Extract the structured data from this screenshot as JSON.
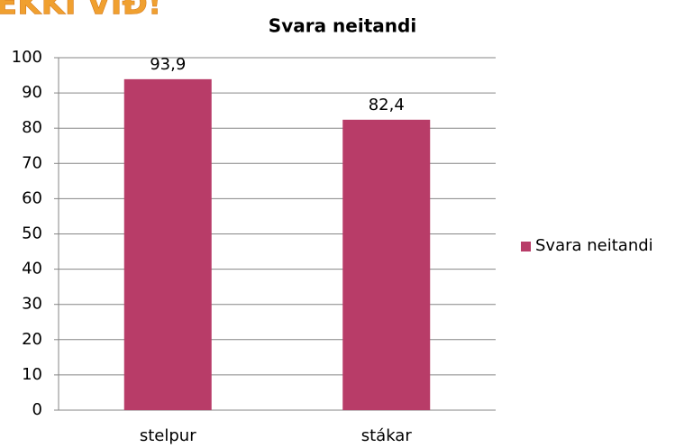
{
  "heading": "EKKI VIÐ!",
  "chart_data": {
    "type": "bar",
    "title": "Svara neitandi",
    "categories": [
      "stelpur",
      "stákar"
    ],
    "series": [
      {
        "name": "Svara neitandi",
        "color": "#b83c68",
        "values": [
          93.9,
          82.4
        ],
        "value_labels": [
          "93,9",
          "82,4"
        ]
      }
    ],
    "ylim": [
      0,
      100
    ],
    "yticks": [
      0,
      10,
      20,
      30,
      40,
      50,
      60,
      70,
      80,
      90,
      100
    ],
    "grid": true,
    "legend": "right"
  }
}
